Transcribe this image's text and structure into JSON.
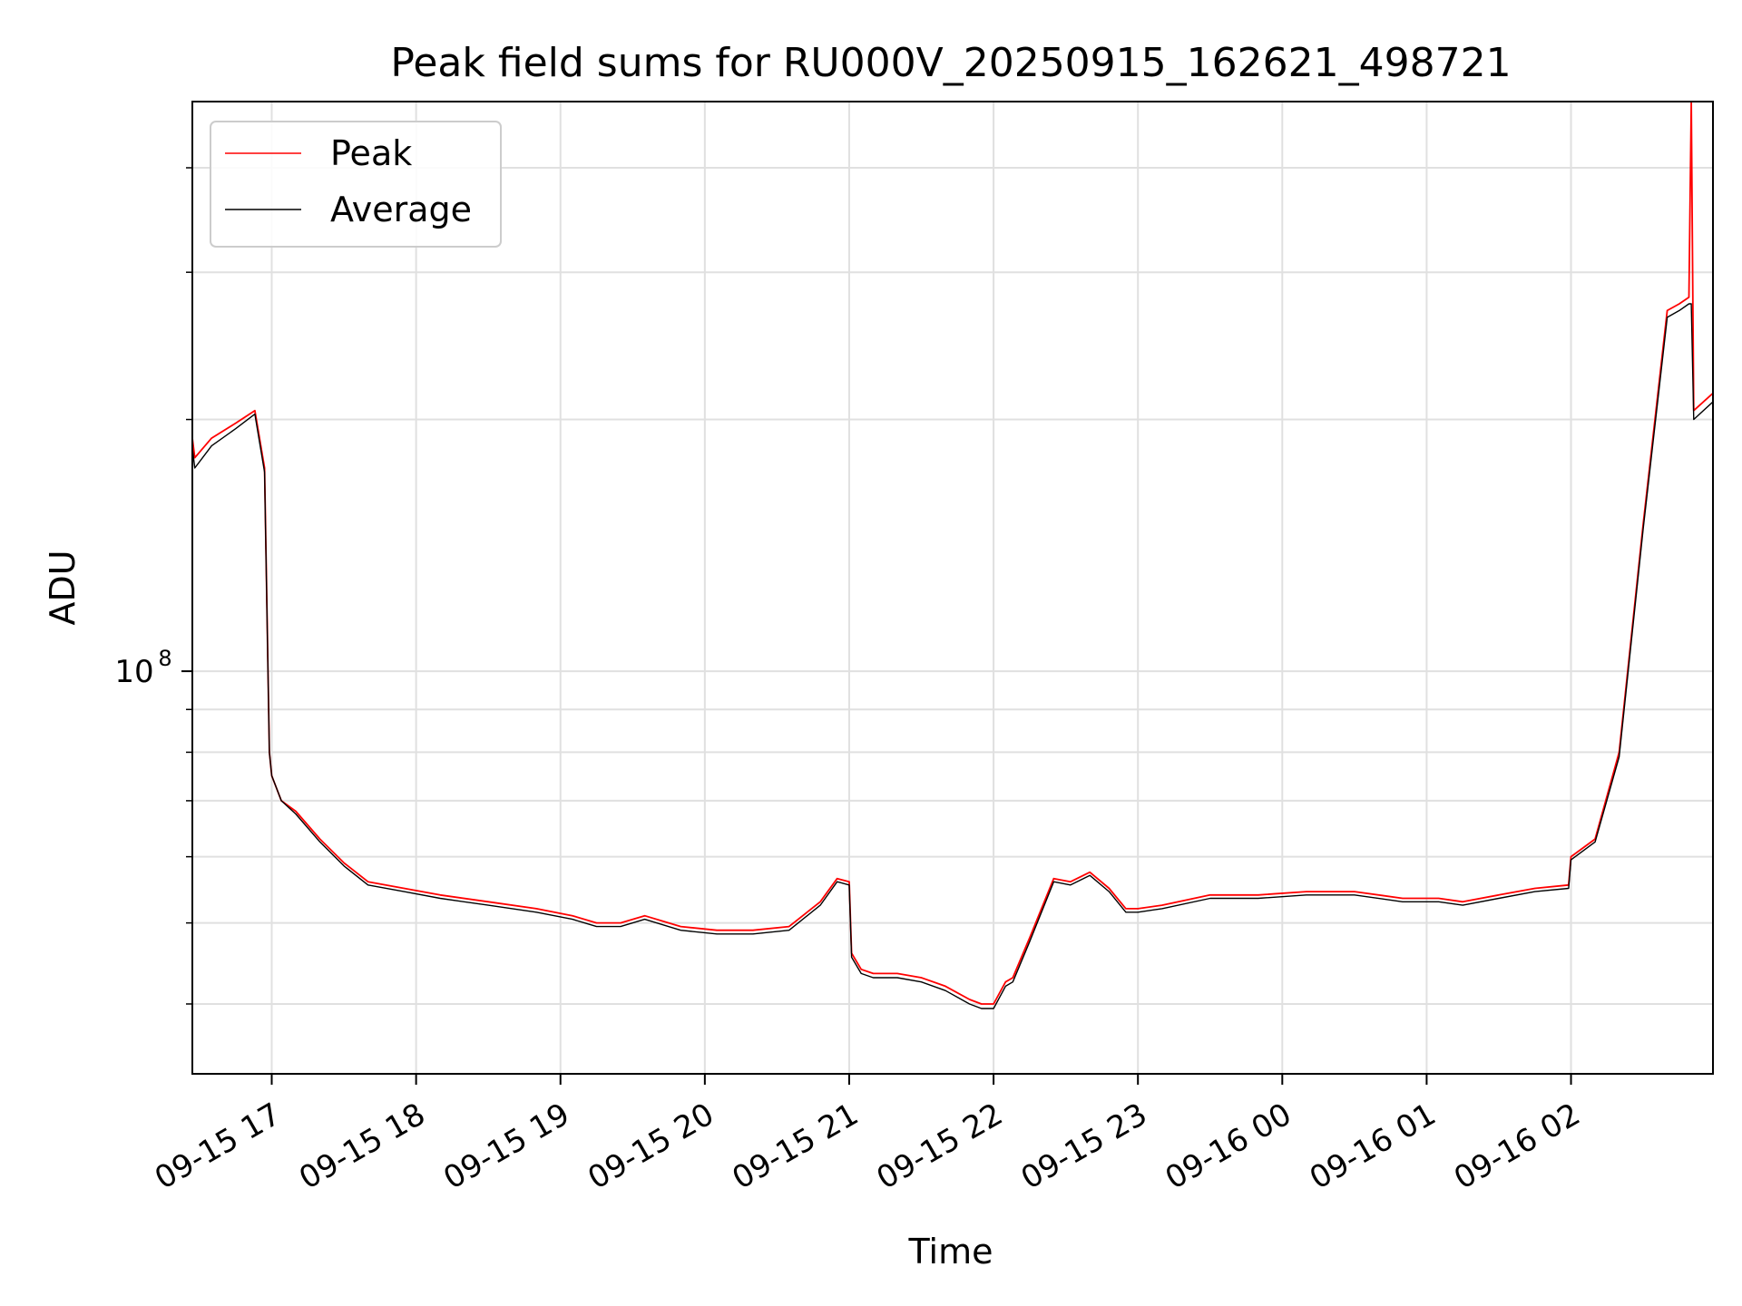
{
  "chart_data": {
    "type": "line",
    "title": "Peak field sums for RU000V_20250915_162621_498721",
    "xlabel": "Time",
    "ylabel": "ADU",
    "yscale": "log",
    "grid": true,
    "legend_placement": "top-left",
    "x_tick_labels": [
      "09-15 17",
      "09-15 18",
      "09-15 19",
      "09-15 20",
      "09-15 21",
      "09-15 22",
      "09-15 23",
      "09-16 00",
      "09-16 01",
      "09-16 02"
    ],
    "x_ticks": [
      "2025-09-15 17:00",
      "2025-09-15 18:00",
      "2025-09-15 19:00",
      "2025-09-15 20:00",
      "2025-09-15 21:00",
      "2025-09-15 22:00",
      "2025-09-15 23:00",
      "2025-09-16 00:00",
      "2025-09-16 01:00",
      "2025-09-16 02:00"
    ],
    "y_tick_label": {
      "base": "10",
      "exp": "8",
      "value": 100000000
    },
    "xlim": [
      "2025-09-15 16:27",
      "2025-09-16 02:59"
    ],
    "ylim": [
      33000000,
      480000000
    ],
    "colors": {
      "peak": "#ff0000",
      "average": "#000000",
      "grid": "#e0e0e0"
    },
    "series": [
      {
        "name": "Peak",
        "color": "#ff0000",
        "x": [
          "2025-09-15 16:27",
          "2025-09-15 16:28",
          "2025-09-15 16:35",
          "2025-09-15 16:45",
          "2025-09-15 16:53",
          "2025-09-15 16:57",
          "2025-09-15 16:59",
          "2025-09-15 17:00",
          "2025-09-15 17:04",
          "2025-09-15 17:10",
          "2025-09-15 17:20",
          "2025-09-15 17:30",
          "2025-09-15 17:40",
          "2025-09-15 17:55",
          "2025-09-15 18:10",
          "2025-09-15 18:30",
          "2025-09-15 18:50",
          "2025-09-15 19:05",
          "2025-09-15 19:15",
          "2025-09-15 19:25",
          "2025-09-15 19:35",
          "2025-09-15 19:50",
          "2025-09-15 20:05",
          "2025-09-15 20:20",
          "2025-09-15 20:35",
          "2025-09-15 20:48",
          "2025-09-15 20:55",
          "2025-09-15 21:00",
          "2025-09-15 21:01",
          "2025-09-15 21:05",
          "2025-09-15 21:10",
          "2025-09-15 21:20",
          "2025-09-15 21:30",
          "2025-09-15 21:40",
          "2025-09-15 21:50",
          "2025-09-15 21:55",
          "2025-09-15 22:00",
          "2025-09-15 22:05",
          "2025-09-15 22:08",
          "2025-09-15 22:15",
          "2025-09-15 22:25",
          "2025-09-15 22:32",
          "2025-09-15 22:40",
          "2025-09-15 22:48",
          "2025-09-15 22:55",
          "2025-09-15 23:00",
          "2025-09-15 23:10",
          "2025-09-15 23:30",
          "2025-09-15 23:50",
          "2025-09-16 00:10",
          "2025-09-16 00:30",
          "2025-09-16 00:50",
          "2025-09-16 01:05",
          "2025-09-16 01:15",
          "2025-09-16 01:30",
          "2025-09-16 01:45",
          "2025-09-16 01:59",
          "2025-09-16 02:00",
          "2025-09-16 02:10",
          "2025-09-16 02:20",
          "2025-09-16 02:30",
          "2025-09-16 02:40",
          "2025-09-16 02:45",
          "2025-09-16 02:49",
          "2025-09-16 02:50",
          "2025-09-16 02:51",
          "2025-09-16 02:59"
        ],
        "y": [
          190000000,
          180000000,
          190000000,
          198000000,
          205000000,
          175000000,
          80000000,
          75000000,
          70000000,
          68000000,
          63000000,
          59000000,
          56000000,
          55000000,
          54000000,
          53000000,
          52000000,
          51000000,
          50000000,
          50000000,
          51000000,
          49500000,
          49000000,
          49000000,
          49500000,
          53000000,
          56500000,
          56000000,
          46000000,
          44000000,
          43500000,
          43500000,
          43000000,
          42000000,
          40500000,
          40000000,
          40000000,
          42500000,
          43000000,
          48000000,
          56500000,
          56000000,
          57500000,
          55000000,
          52000000,
          52000000,
          52500000,
          54000000,
          54000000,
          54500000,
          54500000,
          53500000,
          53500000,
          53000000,
          54000000,
          55000000,
          55500000,
          60000000,
          63000000,
          80000000,
          150000000,
          270000000,
          275000000,
          280000000,
          480000000,
          205000000,
          215000000
        ]
      },
      {
        "name": "Average",
        "color": "#000000",
        "x": [
          "2025-09-15 16:27",
          "2025-09-15 16:28",
          "2025-09-15 16:35",
          "2025-09-15 16:45",
          "2025-09-15 16:53",
          "2025-09-15 16:57",
          "2025-09-15 16:59",
          "2025-09-15 17:00",
          "2025-09-15 17:04",
          "2025-09-15 17:10",
          "2025-09-15 17:20",
          "2025-09-15 17:30",
          "2025-09-15 17:40",
          "2025-09-15 17:55",
          "2025-09-15 18:10",
          "2025-09-15 18:30",
          "2025-09-15 18:50",
          "2025-09-15 19:05",
          "2025-09-15 19:15",
          "2025-09-15 19:25",
          "2025-09-15 19:35",
          "2025-09-15 19:50",
          "2025-09-15 20:05",
          "2025-09-15 20:20",
          "2025-09-15 20:35",
          "2025-09-15 20:48",
          "2025-09-15 20:55",
          "2025-09-15 21:00",
          "2025-09-15 21:01",
          "2025-09-15 21:05",
          "2025-09-15 21:10",
          "2025-09-15 21:20",
          "2025-09-15 21:30",
          "2025-09-15 21:40",
          "2025-09-15 21:50",
          "2025-09-15 21:55",
          "2025-09-15 22:00",
          "2025-09-15 22:05",
          "2025-09-15 22:08",
          "2025-09-15 22:15",
          "2025-09-15 22:25",
          "2025-09-15 22:32",
          "2025-09-15 22:40",
          "2025-09-15 22:48",
          "2025-09-15 22:55",
          "2025-09-15 23:00",
          "2025-09-15 23:10",
          "2025-09-15 23:30",
          "2025-09-15 23:50",
          "2025-09-16 00:10",
          "2025-09-16 00:30",
          "2025-09-16 00:50",
          "2025-09-16 01:05",
          "2025-09-16 01:15",
          "2025-09-16 01:30",
          "2025-09-16 01:45",
          "2025-09-16 01:59",
          "2025-09-16 02:00",
          "2025-09-16 02:10",
          "2025-09-16 02:20",
          "2025-09-16 02:30",
          "2025-09-16 02:40",
          "2025-09-16 02:45",
          "2025-09-16 02:49",
          "2025-09-16 02:50",
          "2025-09-16 02:51",
          "2025-09-16 02:59"
        ],
        "y": [
          185000000,
          175000000,
          186000000,
          195000000,
          203000000,
          173000000,
          80000000,
          75000000,
          70000000,
          67500000,
          62500000,
          58500000,
          55500000,
          54500000,
          53500000,
          52500000,
          51500000,
          50500000,
          49500000,
          49500000,
          50500000,
          49000000,
          48500000,
          48500000,
          49000000,
          52500000,
          56000000,
          55500000,
          45500000,
          43500000,
          43000000,
          43000000,
          42500000,
          41500000,
          40000000,
          39500000,
          39500000,
          42000000,
          42500000,
          47500000,
          56000000,
          55500000,
          57000000,
          54500000,
          51500000,
          51500000,
          52000000,
          53500000,
          53500000,
          54000000,
          54000000,
          53000000,
          53000000,
          52500000,
          53500000,
          54500000,
          55000000,
          59500000,
          62500000,
          79000000,
          148000000,
          265000000,
          270000000,
          275000000,
          275000000,
          200000000,
          210000000
        ]
      }
    ]
  }
}
